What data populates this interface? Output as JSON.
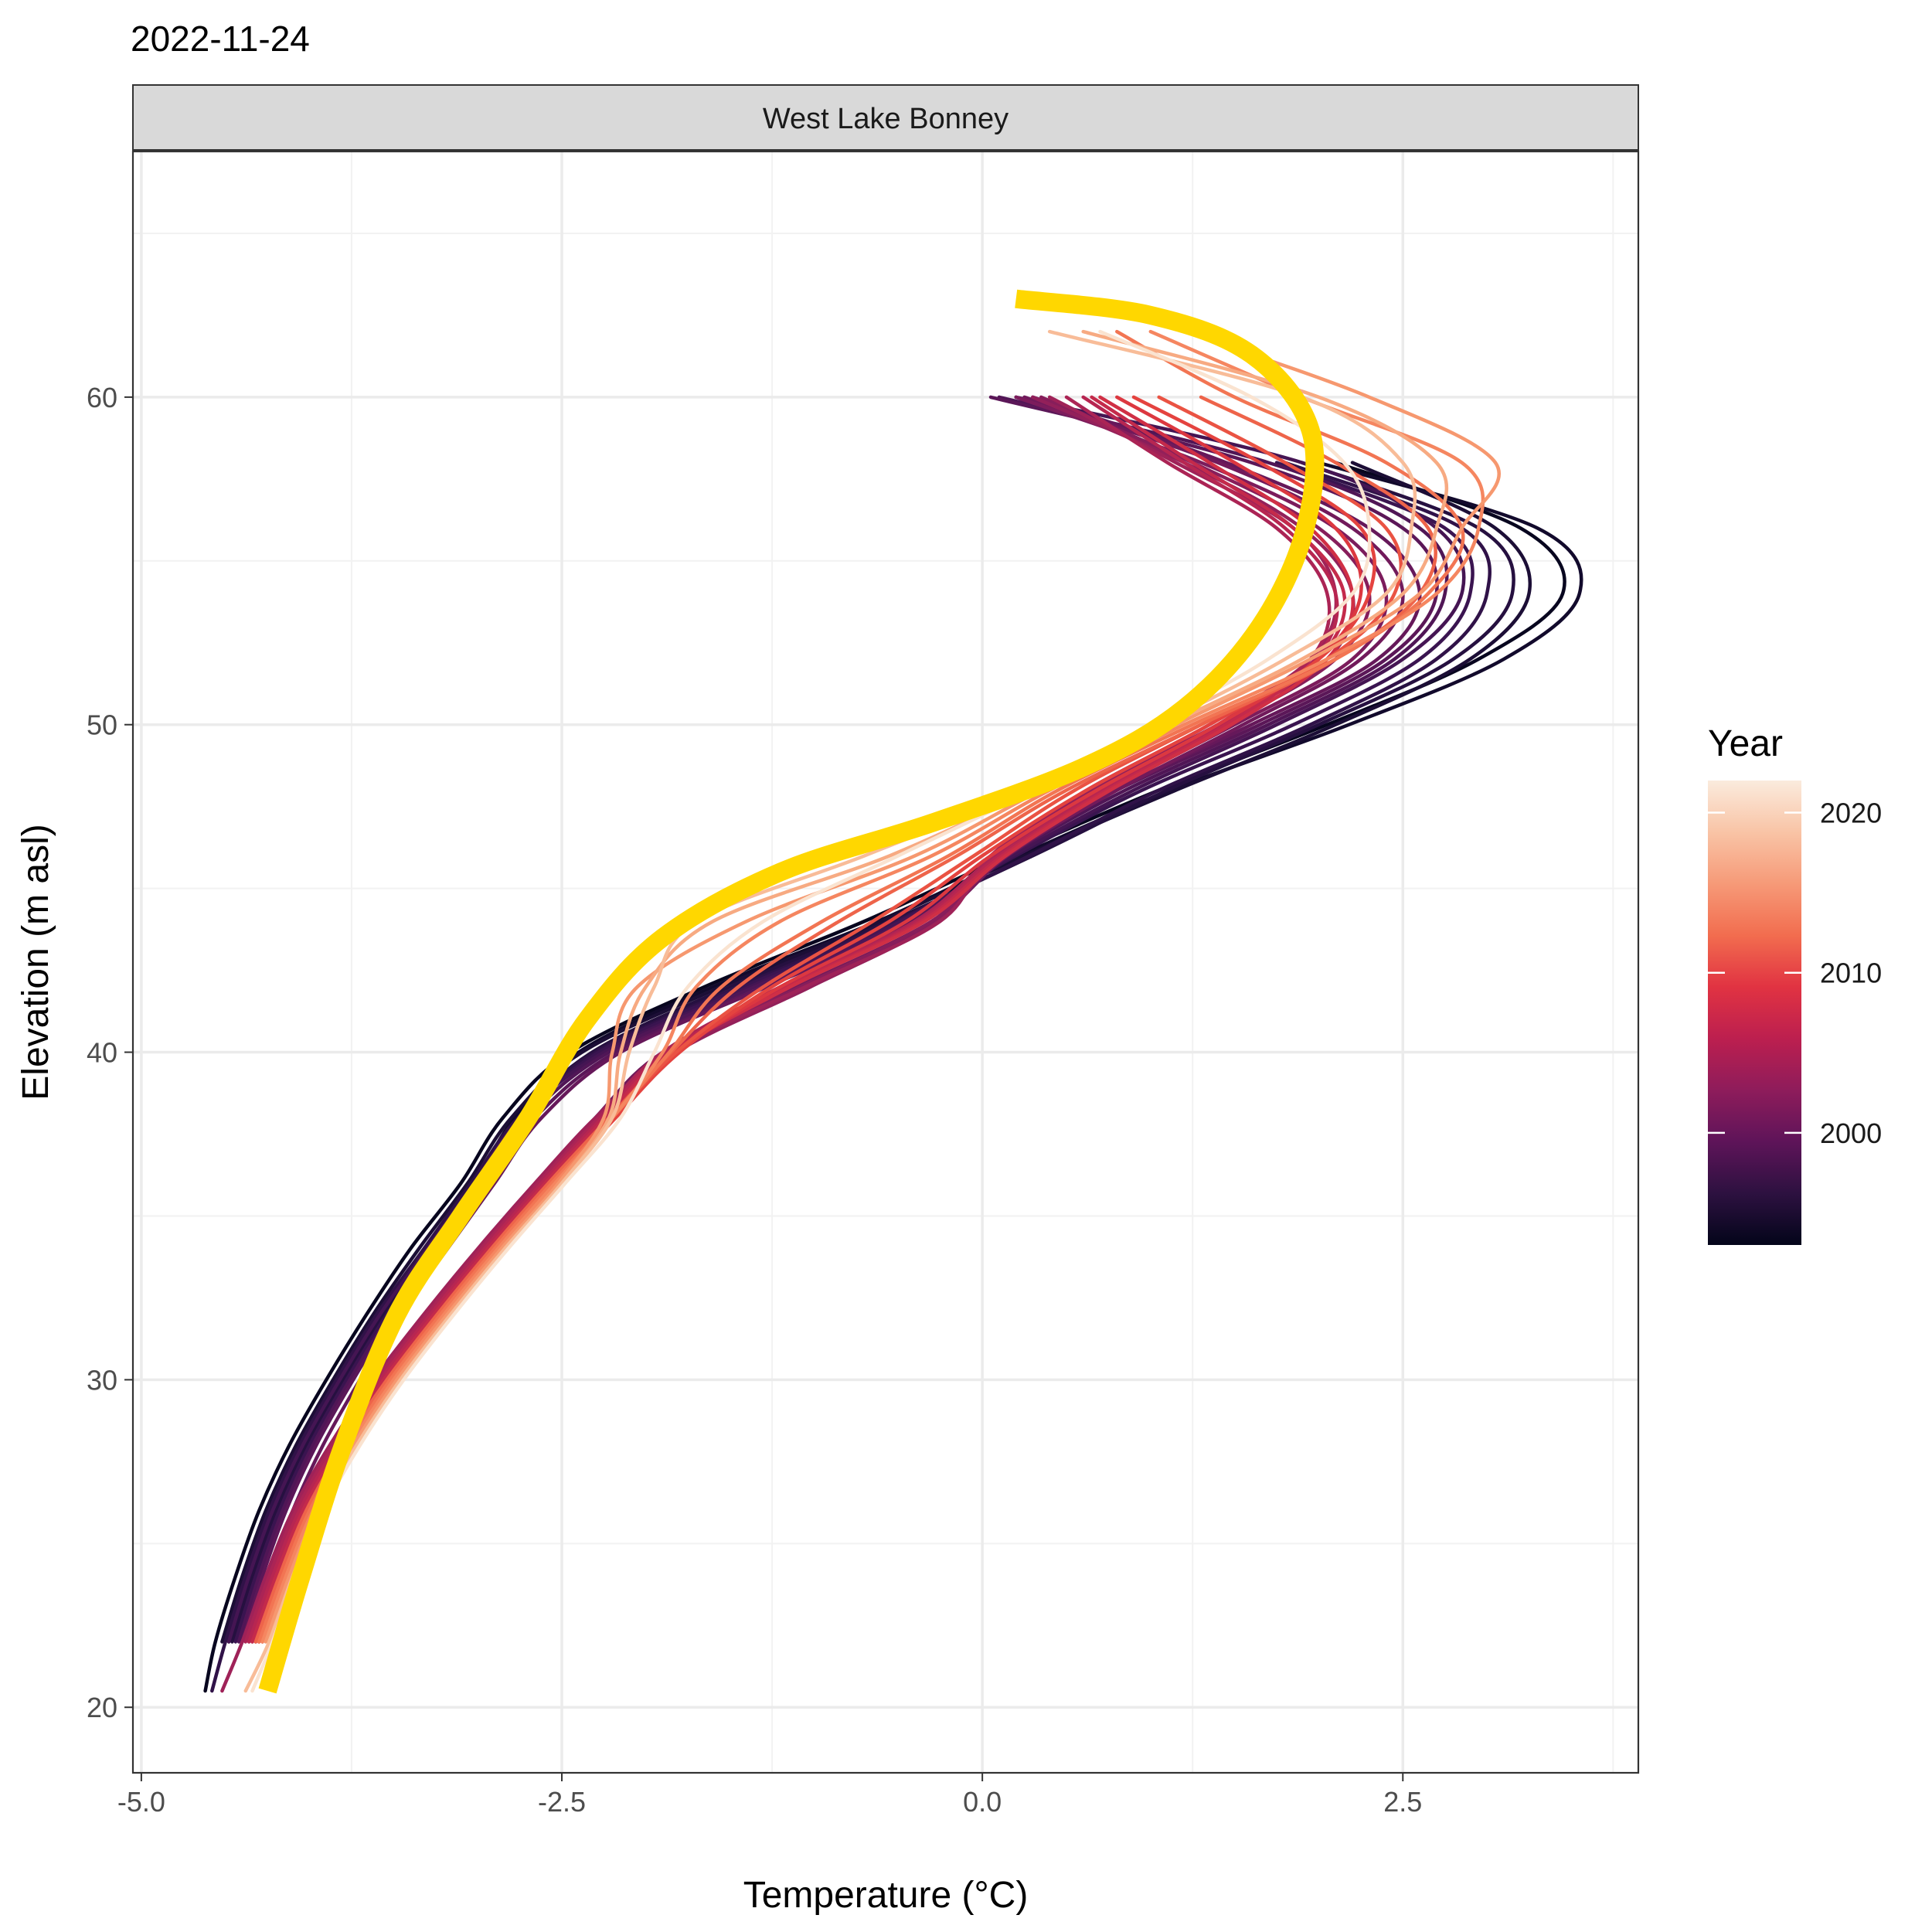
{
  "chart_data": {
    "type": "line",
    "title": "2022-11-24",
    "facet_label": "West Lake Bonney",
    "xlabel": "Temperature (°C)",
    "ylabel": "Elevation (m asl)",
    "xlim": [
      -5.05,
      3.9
    ],
    "ylim": [
      18,
      67.5
    ],
    "x_ticks": [
      -5.0,
      -2.5,
      0.0,
      2.5
    ],
    "x_tick_labels": [
      "-5.0",
      "-2.5",
      "0.0",
      "2.5"
    ],
    "y_ticks": [
      20,
      30,
      40,
      50,
      60
    ],
    "y_tick_labels": [
      "20",
      "30",
      "40",
      "50",
      "60"
    ],
    "grid": true,
    "legend": {
      "title": "Year",
      "position": "right",
      "type": "colorbar",
      "range": [
        1993,
        2022
      ],
      "ticks": [
        2000,
        2010,
        2020
      ],
      "tick_labels": [
        "2000",
        "2010",
        "2020"
      ],
      "colors": [
        "#03051a",
        "#2d1140",
        "#5e1459",
        "#8e1c5b",
        "#bc1f4f",
        "#e13342",
        "#f26d4f",
        "#f69a78",
        "#f9c4a6",
        "#faebdd"
      ]
    },
    "highlight_color": "#ffd700",
    "profile_elevations": [
      20.5,
      22,
      24,
      26,
      28,
      30,
      32,
      34,
      36,
      38,
      40,
      42,
      44,
      46,
      48,
      50,
      52,
      54,
      56,
      58,
      60,
      62
    ],
    "series": [
      {
        "year": 1994,
        "color": "#08061f",
        "values": [
          -4.62,
          -4.56,
          -4.44,
          -4.3,
          -4.12,
          -3.9,
          -3.66,
          -3.4,
          -3.1,
          -2.85,
          -2.45,
          -1.65,
          -0.7,
          0.15,
          1.05,
          2.05,
          2.95,
          3.45,
          3.2,
          2.1,
          null,
          null
        ]
      },
      {
        "year": 1995,
        "color": "#120a2c",
        "values": [
          null,
          -4.48,
          -4.36,
          -4.22,
          -4.04,
          -3.82,
          -3.58,
          -3.3,
          -3.02,
          -2.78,
          -2.4,
          -1.6,
          -0.62,
          0.22,
          1.12,
          2.18,
          3.1,
          3.55,
          3.3,
          2.0,
          null,
          null
        ]
      },
      {
        "year": 1996,
        "color": "#1c0e36",
        "values": [
          null,
          -4.52,
          -4.4,
          -4.26,
          -4.08,
          -3.86,
          -3.62,
          -3.35,
          -3.06,
          -2.8,
          -2.38,
          -1.55,
          -0.6,
          0.25,
          1.15,
          2.1,
          2.9,
          3.25,
          3.05,
          2.2,
          null,
          null
        ]
      },
      {
        "year": 1997,
        "color": "#261040",
        "values": [
          null,
          -4.46,
          -4.34,
          -4.2,
          -4.02,
          -3.8,
          -3.56,
          -3.28,
          -3.0,
          -2.74,
          -2.32,
          -1.5,
          -0.55,
          0.3,
          1.1,
          2.0,
          2.8,
          3.15,
          2.95,
          1.9,
          null,
          null
        ]
      },
      {
        "year": 1998,
        "color": "#301248",
        "values": [
          -4.58,
          -4.5,
          -4.38,
          -4.24,
          -4.06,
          -3.84,
          -3.6,
          -3.32,
          -3.04,
          -2.76,
          -2.3,
          -1.45,
          -0.52,
          0.28,
          1.05,
          1.95,
          2.7,
          3.0,
          2.85,
          1.8,
          null,
          null
        ]
      },
      {
        "year": 1999,
        "color": "#3a1450",
        "values": [
          null,
          -4.44,
          -4.32,
          -4.18,
          -4.0,
          -3.78,
          -3.54,
          -3.26,
          -2.98,
          -2.72,
          -2.28,
          -1.42,
          -0.5,
          0.2,
          0.95,
          1.85,
          2.6,
          2.9,
          2.75,
          1.75,
          null,
          null
        ]
      },
      {
        "year": 2000,
        "color": "#451553",
        "values": [
          null,
          -4.48,
          -4.36,
          -4.22,
          -4.04,
          -3.82,
          -3.58,
          -3.3,
          -3.02,
          -2.74,
          -2.25,
          -1.38,
          -0.48,
          0.18,
          0.9,
          1.75,
          2.5,
          2.85,
          2.7,
          1.9,
          0.2,
          null
        ]
      },
      {
        "year": 2001,
        "color": "#501656",
        "values": [
          null,
          -4.42,
          -4.3,
          -4.16,
          -3.98,
          -3.76,
          -3.52,
          -3.24,
          -2.96,
          -2.7,
          -2.22,
          -1.35,
          -0.45,
          0.15,
          0.85,
          1.7,
          2.45,
          2.75,
          2.6,
          1.7,
          0.1,
          null
        ]
      },
      {
        "year": 2002,
        "color": "#5b1758",
        "values": [
          null,
          -4.4,
          -4.28,
          -4.14,
          -3.96,
          -3.74,
          -3.5,
          -3.22,
          -2.94,
          -2.66,
          -2.18,
          -1.3,
          -0.42,
          0.12,
          0.8,
          1.65,
          2.4,
          2.7,
          2.5,
          1.6,
          0.05,
          null
        ]
      },
      {
        "year": 2003,
        "color": "#66185a",
        "values": [
          null,
          -4.36,
          -4.24,
          -4.1,
          -3.92,
          -3.7,
          -3.46,
          -3.18,
          -2.9,
          -2.62,
          -2.15,
          -1.28,
          -0.4,
          0.1,
          0.78,
          1.6,
          2.35,
          2.6,
          2.3,
          1.45,
          0.3,
          null
        ]
      },
      {
        "year": 2004,
        "color": "#711a5b",
        "values": [
          null,
          -4.34,
          -4.22,
          -4.06,
          -3.86,
          -3.6,
          -3.3,
          -2.98,
          -2.64,
          -2.3,
          -1.9,
          -1.1,
          -0.3,
          0.15,
          0.8,
          1.55,
          2.25,
          2.5,
          2.2,
          1.4,
          0.25,
          null
        ]
      },
      {
        "year": 2005,
        "color": "#7c1c5c",
        "values": [
          null,
          -4.3,
          -4.18,
          -4.02,
          -3.82,
          -3.56,
          -3.26,
          -2.94,
          -2.6,
          -2.26,
          -1.85,
          -1.05,
          -0.28,
          0.12,
          0.75,
          1.5,
          2.2,
          2.4,
          2.1,
          1.3,
          0.2,
          null
        ]
      },
      {
        "year": 2006,
        "color": "#871e5b",
        "values": [
          null,
          -4.32,
          -4.2,
          -4.04,
          -3.84,
          -3.58,
          -3.28,
          -2.96,
          -2.62,
          -2.28,
          -1.88,
          -1.08,
          -0.3,
          0.1,
          0.7,
          1.45,
          2.1,
          2.3,
          2.0,
          1.25,
          0.35,
          null
        ]
      },
      {
        "year": 2007,
        "color": "#93205a",
        "values": [
          null,
          -4.28,
          -4.16,
          -4.0,
          -3.8,
          -3.54,
          -3.24,
          -2.92,
          -2.58,
          -2.24,
          -1.82,
          -1.02,
          -0.26,
          0.08,
          0.65,
          1.4,
          2.05,
          2.2,
          1.9,
          1.2,
          0.3,
          null
        ]
      },
      {
        "year": 2008,
        "color": "#9f2258",
        "values": [
          -4.52,
          -4.4,
          -4.26,
          -4.1,
          -3.88,
          -3.62,
          -3.32,
          -3.0,
          -2.66,
          -2.3,
          -1.86,
          -1.05,
          -0.25,
          0.05,
          0.62,
          1.35,
          1.95,
          2.1,
          1.85,
          1.15,
          0.4,
          null
        ]
      },
      {
        "year": 2009,
        "color": "#ab2455",
        "values": [
          null,
          -4.38,
          -4.24,
          -4.08,
          -3.86,
          -3.6,
          -3.3,
          -2.98,
          -2.64,
          -2.28,
          -1.9,
          -1.2,
          -0.4,
          0.08,
          0.7,
          1.4,
          1.95,
          2.05,
          1.75,
          1.1,
          0.5,
          null
        ]
      },
      {
        "year": 2010,
        "color": "#b72651",
        "values": [
          null,
          -4.36,
          -4.22,
          -4.06,
          -3.84,
          -3.58,
          -3.28,
          -2.96,
          -2.62,
          -2.26,
          -1.88,
          -1.18,
          -0.38,
          0.1,
          0.72,
          1.42,
          1.98,
          2.1,
          1.8,
          1.2,
          0.6,
          null
        ]
      },
      {
        "year": 2011,
        "color": "#c42a4b",
        "values": [
          null,
          -4.34,
          -4.2,
          -4.04,
          -3.82,
          -3.56,
          -3.26,
          -2.94,
          -2.6,
          -2.24,
          -1.86,
          -1.16,
          -0.36,
          0.12,
          0.74,
          1.45,
          2.0,
          2.15,
          1.85,
          1.25,
          0.65,
          null
        ]
      },
      {
        "year": 2012,
        "color": "#d02f45",
        "values": [
          null,
          -4.32,
          -4.18,
          -4.02,
          -3.8,
          -3.54,
          -3.24,
          -2.92,
          -2.58,
          -2.22,
          -1.84,
          -1.14,
          -0.34,
          0.14,
          0.76,
          1.48,
          2.05,
          2.2,
          1.95,
          1.35,
          0.7,
          null
        ]
      },
      {
        "year": 2013,
        "color": "#dc3840",
        "values": [
          null,
          -4.3,
          -4.16,
          -4.0,
          -3.78,
          -3.52,
          -3.22,
          -2.9,
          -2.56,
          -2.2,
          -1.82,
          -1.2,
          -0.45,
          0.05,
          0.68,
          1.4,
          2.0,
          2.25,
          2.1,
          1.5,
          0.8,
          null
        ]
      },
      {
        "year": 2014,
        "color": "#e4433f",
        "values": [
          null,
          -4.28,
          -4.14,
          -3.98,
          -3.76,
          -3.5,
          -3.2,
          -2.88,
          -2.54,
          -2.18,
          -1.8,
          -1.25,
          -0.55,
          0.0,
          0.62,
          1.35,
          2.0,
          2.3,
          2.25,
          1.65,
          0.9,
          null
        ]
      },
      {
        "year": 2015,
        "color": "#ea5343",
        "values": [
          null,
          -4.3,
          -4.16,
          -4.0,
          -3.78,
          -3.52,
          -3.22,
          -2.9,
          -2.56,
          -2.2,
          -1.82,
          -1.3,
          -0.65,
          -0.05,
          0.55,
          1.3,
          2.05,
          2.45,
          2.4,
          1.8,
          1.05,
          null
        ]
      },
      {
        "year": 2016,
        "color": "#ee644a",
        "values": [
          null,
          -4.32,
          -4.18,
          -4.02,
          -3.8,
          -3.54,
          -3.24,
          -2.92,
          -2.58,
          -2.22,
          -1.85,
          -1.45,
          -0.85,
          -0.15,
          0.5,
          1.3,
          2.1,
          2.6,
          2.65,
          2.1,
          1.3,
          null
        ]
      },
      {
        "year": 2017,
        "color": "#f27553",
        "values": [
          null,
          -4.3,
          -4.16,
          -4.0,
          -3.78,
          -3.52,
          -3.22,
          -2.9,
          -2.56,
          -2.2,
          -1.86,
          -1.55,
          -0.95,
          -0.2,
          0.45,
          1.25,
          2.1,
          2.65,
          2.85,
          2.4,
          1.5,
          0.8
        ]
      },
      {
        "year": 2018,
        "color": "#f58660",
        "values": [
          null,
          -4.28,
          -4.14,
          -3.98,
          -3.76,
          -3.5,
          -3.2,
          -2.88,
          -2.54,
          -2.2,
          -1.9,
          -1.7,
          -1.2,
          -0.3,
          0.4,
          1.2,
          2.05,
          2.7,
          2.95,
          2.85,
          1.9,
          1.0
        ]
      },
      {
        "year": 2019,
        "color": "#f6986f",
        "values": [
          null,
          -4.26,
          -4.12,
          -3.96,
          -3.74,
          -3.48,
          -3.18,
          -2.86,
          -2.52,
          -2.25,
          -2.2,
          -2.05,
          -1.4,
          -0.4,
          0.35,
          1.15,
          1.95,
          2.6,
          2.85,
          3.05,
          2.3,
          1.2
        ]
      },
      {
        "year": 2020,
        "color": "#f7aa82",
        "values": [
          null,
          -4.24,
          -4.1,
          -3.94,
          -3.72,
          -3.46,
          -3.16,
          -2.84,
          -2.5,
          -2.22,
          -2.15,
          -2.0,
          -1.6,
          -0.55,
          0.3,
          1.1,
          1.9,
          2.5,
          2.7,
          2.7,
          2.0,
          0.6
        ]
      },
      {
        "year": 2021,
        "color": "#f8bc98",
        "values": [
          -4.38,
          -4.24,
          -4.1,
          -3.94,
          -3.72,
          -3.46,
          -3.16,
          -2.84,
          -2.5,
          -2.2,
          -2.1,
          -1.95,
          -1.7,
          -0.7,
          0.25,
          1.05,
          1.8,
          2.4,
          2.55,
          2.5,
          1.9,
          0.4
        ]
      },
      {
        "year": 2022,
        "color": "#fae3d0",
        "values": [
          -4.34,
          -4.22,
          -4.08,
          -3.92,
          -3.7,
          -3.44,
          -3.14,
          -2.82,
          -2.48,
          -2.15,
          -1.95,
          -1.75,
          -1.3,
          -0.5,
          0.3,
          1.0,
          1.7,
          2.2,
          2.3,
          2.15,
          1.6,
          0.7
        ]
      }
    ],
    "highlight": {
      "name": "2022-11-24",
      "points": [
        {
          "x": -4.25,
          "y": 20.5
        },
        {
          "x": -4.05,
          "y": 24
        },
        {
          "x": -3.8,
          "y": 28
        },
        {
          "x": -3.48,
          "y": 32
        },
        {
          "x": -3.1,
          "y": 35
        },
        {
          "x": -2.7,
          "y": 38
        },
        {
          "x": -2.35,
          "y": 41
        },
        {
          "x": -1.9,
          "y": 43.5
        },
        {
          "x": -1.2,
          "y": 45.5
        },
        {
          "x": -0.3,
          "y": 47
        },
        {
          "x": 0.6,
          "y": 48.7
        },
        {
          "x": 1.2,
          "y": 50.5
        },
        {
          "x": 1.65,
          "y": 53
        },
        {
          "x": 1.92,
          "y": 56
        },
        {
          "x": 1.95,
          "y": 59
        },
        {
          "x": 1.6,
          "y": 61.3
        },
        {
          "x": 1.0,
          "y": 62.5
        },
        {
          "x": 0.2,
          "y": 63
        }
      ]
    }
  }
}
